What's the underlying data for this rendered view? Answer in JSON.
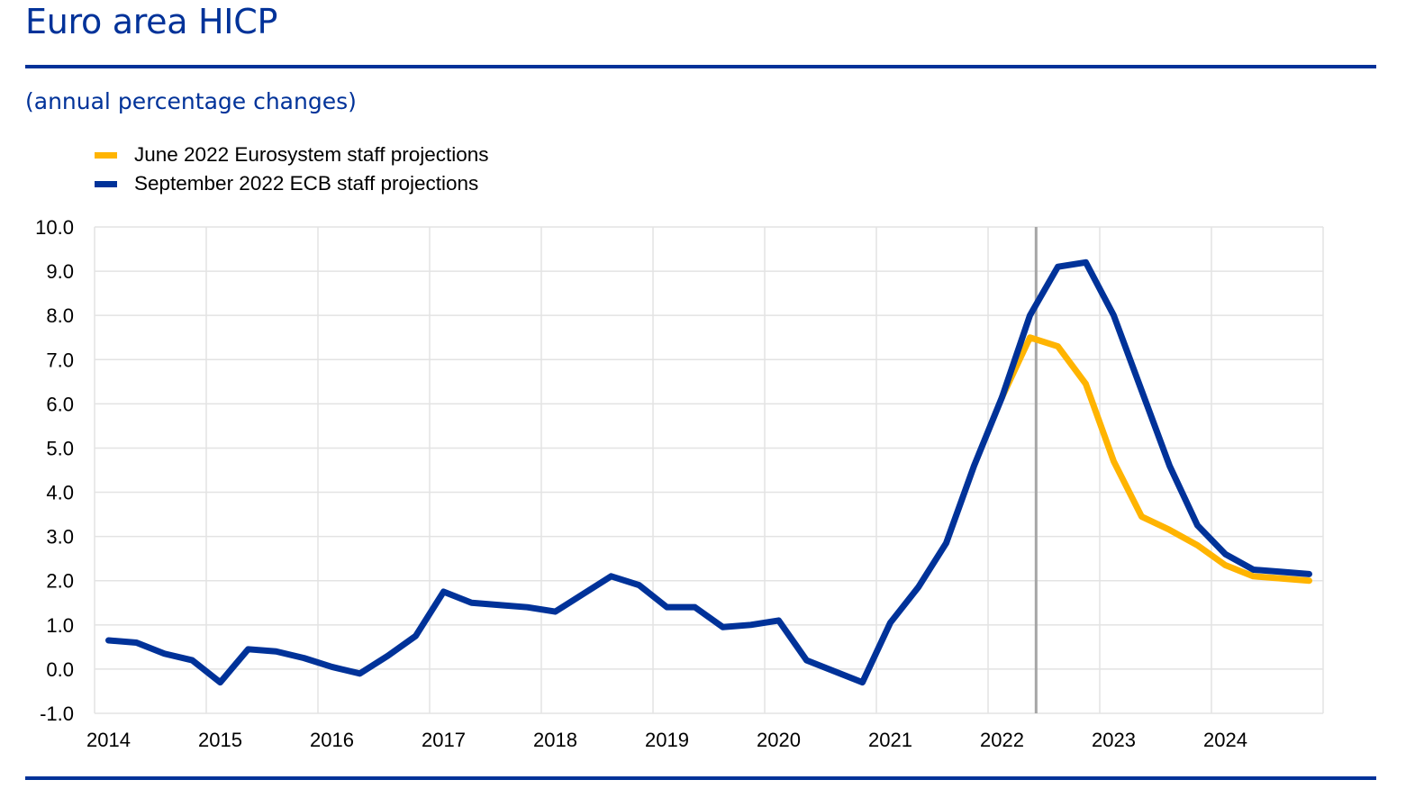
{
  "header": {
    "title": "Euro area HICP",
    "subtitle": "(annual percentage changes)"
  },
  "colors": {
    "brand_blue": "#003299",
    "june_series": "#FFB400",
    "september_series": "#003299",
    "cutoff_line": "#A6A6A6",
    "grid": "#E3E3E3"
  },
  "chart_data": {
    "type": "line",
    "title": "Euro area HICP",
    "subtitle": "(annual percentage changes)",
    "xlabel": "",
    "ylabel": "",
    "frequency": "quarterly",
    "x_start": "2014Q1",
    "x_end": "2024Q4",
    "xlim": [
      2014,
      2025
    ],
    "ylim": [
      -1.0,
      10.0
    ],
    "yticks": [
      "10.0",
      "9.0",
      "8.0",
      "7.0",
      "6.0",
      "5.0",
      "4.0",
      "3.0",
      "2.0",
      "1.0",
      "0.0",
      "-1.0"
    ],
    "xticks": [
      "2014",
      "2015",
      "2016",
      "2017",
      "2018",
      "2019",
      "2020",
      "2021",
      "2022",
      "2023",
      "2024"
    ],
    "grid": true,
    "legend_position": "top-left",
    "cutoff_line_x": 2022.43,
    "series": [
      {
        "name": "June 2022 Eurosystem staff projections",
        "start": "2022Q1",
        "values": [
          6.15,
          7.5,
          7.3,
          6.45,
          4.7,
          3.45,
          3.15,
          2.8,
          2.35,
          2.1,
          2.05,
          2.0
        ]
      },
      {
        "name": "September 2022 ECB staff projections",
        "start": "2014Q1",
        "values": [
          0.65,
          0.6,
          0.35,
          0.2,
          -0.3,
          0.45,
          0.4,
          0.25,
          0.05,
          -0.1,
          0.3,
          0.75,
          1.75,
          1.5,
          1.45,
          1.4,
          1.3,
          1.7,
          2.1,
          1.9,
          1.4,
          1.4,
          0.95,
          1.0,
          1.1,
          0.2,
          -0.05,
          -0.3,
          1.05,
          1.85,
          2.85,
          4.6,
          6.15,
          8.0,
          9.1,
          9.2,
          8.0,
          6.3,
          4.6,
          3.25,
          2.6,
          2.25,
          2.2,
          2.15
        ]
      }
    ]
  }
}
